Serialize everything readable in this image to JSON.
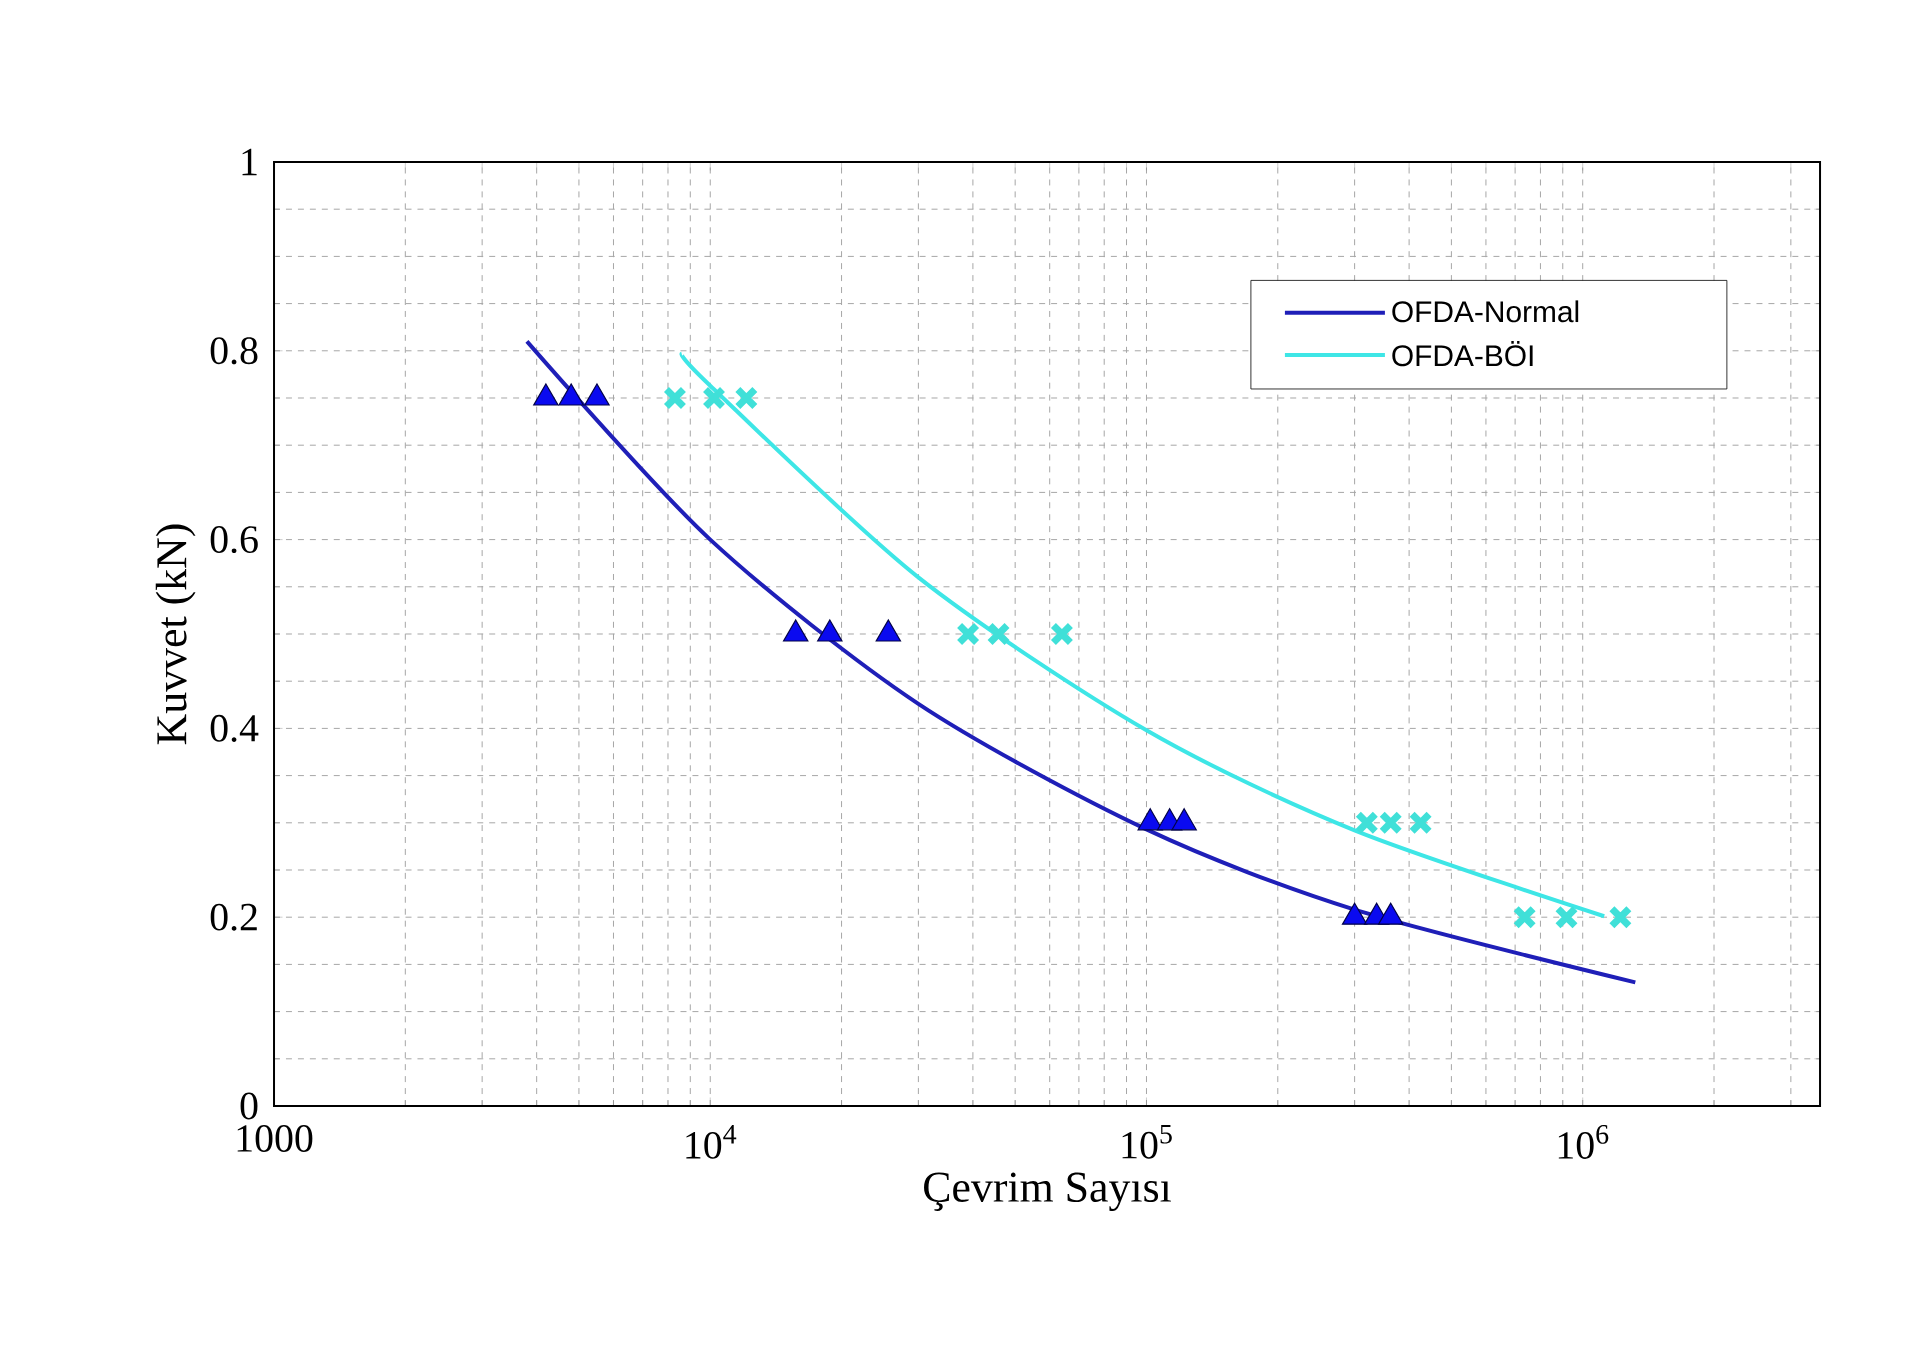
{
  "chart_data": {
    "type": "scatter",
    "xlabel": "Çevrim Sayısı",
    "ylabel": "Kuvvet (kN)",
    "log": "x",
    "grid": true,
    "legend": "top right",
    "xlim": [
      1000,
      3500000
    ],
    "ylim": [
      0,
      1
    ],
    "xticks": [
      1000,
      {
        "value": 10000,
        "label": "10$^{4}$"
      },
      {
        "value": 100000,
        "label": "10$^{5}$"
      },
      {
        "value": 1000000,
        "label": "10$^{6}$"
      }
    ],
    "yticks": [
      0,
      0.2,
      0.4,
      0.6,
      0.8,
      1
    ],
    "series": [
      {
        "name": "OFDA-Normal",
        "type": "line",
        "color": "#1f1fb8",
        "marker": "none",
        "x": [
          3800,
          10000,
          30000,
          100000,
          300000,
          1320000
        ],
        "values": [
          0.81,
          0.6,
          0.426,
          0.293,
          0.208,
          0.131
        ]
      },
      {
        "name": "OFDA-BÖI",
        "type": "line",
        "color": "#3ee6e6",
        "marker": "none",
        "x": [
          8600,
          10000,
          30000,
          100000,
          300000,
          1120000
        ],
        "values": [
          0.797,
          0.763,
          0.56,
          0.398,
          0.292,
          0.201
        ]
      },
      {
        "color": "#0a0af0",
        "marker": "triangle",
        "x": [
          4200,
          4800,
          5500,
          15700,
          18800,
          25600,
          102000,
          113000,
          122000,
          300000,
          337000,
          363000
        ],
        "values": [
          0.75,
          0.75,
          0.75,
          0.5,
          0.5,
          0.5,
          0.3,
          0.3,
          0.3,
          0.2,
          0.2,
          0.2
        ]
      },
      {
        "color": "#40e0d8",
        "marker": "cross",
        "x": [
          8300,
          10200,
          12100,
          39000,
          45800,
          64000,
          320000,
          363000,
          425000,
          736000,
          918000,
          1220000
        ],
        "values": [
          0.75,
          0.75,
          0.75,
          0.5,
          0.5,
          0.5,
          0.3,
          0.3,
          0.3,
          0.2,
          0.2,
          0.2
        ]
      }
    ]
  }
}
